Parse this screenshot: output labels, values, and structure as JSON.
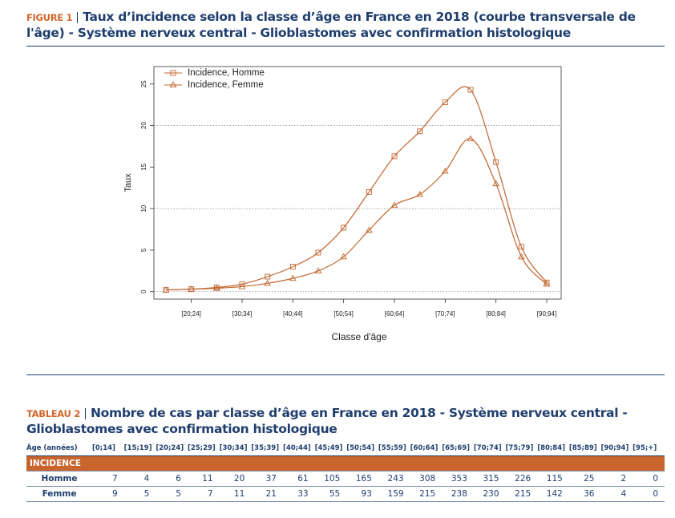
{
  "figure": {
    "label": "FIGURE 1",
    "title": "Taux d’incidence selon la classe d’âge en France en 2018 (courbe transversale de l'âge) - Système nerveux central - Glioblastomes avec confirmation histologique"
  },
  "chart_data": {
    "type": "line",
    "x_label": "Classe d'âge",
    "y_label": "Taux",
    "categories": [
      null,
      "[20;24]",
      null,
      "[30;34]",
      null,
      "[40;44]",
      null,
      "[50;54]",
      null,
      "[60;64]",
      null,
      "[70;74]",
      null,
      "[80;84]",
      null,
      "[90;94]"
    ],
    "series": [
      {
        "name": "Incidence, Homme",
        "color": "#c1652f",
        "marker": "square",
        "values": [
          0.2,
          0.3,
          0.5,
          0.9,
          1.8,
          3.0,
          4.7,
          7.7,
          12.0,
          16.3,
          19.3,
          22.8,
          24.3,
          15.6,
          5.4,
          1.1
        ]
      },
      {
        "name": "Incidence, Femme",
        "color": "#c1652f",
        "marker": "triangle",
        "values": [
          0.2,
          0.3,
          0.4,
          0.6,
          1.0,
          1.6,
          2.5,
          4.2,
          7.4,
          10.4,
          11.7,
          14.5,
          18.4,
          13.0,
          4.2,
          0.9
        ]
      }
    ],
    "ylim": [
      -0.9,
      27.1
    ],
    "yticks": [
      0,
      5,
      10,
      15,
      20,
      25
    ],
    "grid_lines": [
      0,
      10,
      20
    ],
    "legend": "top-left"
  },
  "table": {
    "label": "TABLEAU 2",
    "title": "Nombre de cas par classe d’âge en France en 2018 - Système nerveux central - Glioblastomes avec confirmation histologique",
    "header": [
      "Âge (années)",
      "[0;14]",
      "[15;19]",
      "[20;24]",
      "[25;29]",
      "[30;34]",
      "[35;39]",
      "[40;44]",
      "[45;49]",
      "[50;54]",
      "[55;59]",
      "[60;64]",
      "[65;69]",
      "[70;74]",
      "[75;79]",
      "[80;84]",
      "[85;89]",
      "[90;94]",
      "[95;+]"
    ],
    "section": "INCIDENCE",
    "rows": [
      [
        "Homme",
        7,
        4,
        6,
        11,
        20,
        37,
        61,
        105,
        165,
        243,
        308,
        353,
        315,
        226,
        115,
        25,
        2,
        0
      ],
      [
        "Femme",
        9,
        5,
        5,
        7,
        11,
        21,
        33,
        55,
        93,
        159,
        215,
        238,
        230,
        215,
        142,
        36,
        4,
        0
      ]
    ]
  }
}
